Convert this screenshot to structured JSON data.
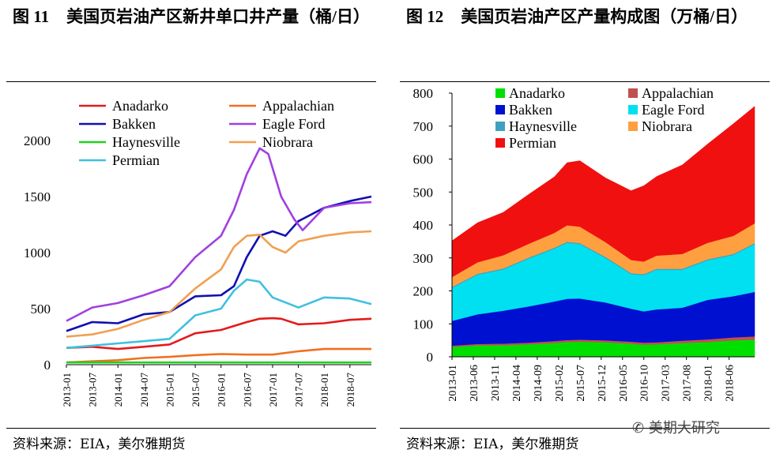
{
  "header": {
    "left": {
      "number": "图 11",
      "text": "美国页岩油产区新井单口井产量（桶/日）"
    },
    "right": {
      "number": "图 12",
      "text": "美国页岩油产区产量构成图（万桶/日）"
    }
  },
  "footer": {
    "left_source": "资料来源：EIA，美尔雅期货",
    "right_source": "资料来源：EIA，美尔雅期货",
    "watermark": "美期大研究"
  },
  "chart_data": [
    {
      "type": "line",
      "title": "美国页岩油产区新井单口井产量（桶/日）",
      "ylim": [
        0,
        2000
      ],
      "yticks": [
        0,
        500,
        1000,
        1500,
        2000
      ],
      "xlim": [
        "2013-01",
        "2018-12"
      ],
      "x_tick_labels": [
        "2013-01",
        "2013-07",
        "2014-01",
        "2014-07",
        "2015-01",
        "2015-07",
        "2016-01",
        "2016-07",
        "2017-01",
        "2017-07",
        "2018-01",
        "2018-07"
      ],
      "legend_position": "top-left",
      "series": [
        {
          "name": "Anadarko",
          "color": "#e41a1c",
          "points": [
            [
              "2013-01",
              150
            ],
            [
              "2013-07",
              160
            ],
            [
              "2014-01",
              140
            ],
            [
              "2014-07",
              160
            ],
            [
              "2015-01",
              180
            ],
            [
              "2015-07",
              280
            ],
            [
              "2016-01",
              310
            ],
            [
              "2016-07",
              380
            ],
            [
              "2016-10",
              410
            ],
            [
              "2017-01",
              415
            ],
            [
              "2017-03",
              410
            ],
            [
              "2017-07",
              360
            ],
            [
              "2018-01",
              370
            ],
            [
              "2018-07",
              400
            ],
            [
              "2018-12",
              410
            ]
          ]
        },
        {
          "name": "Appalachian",
          "color": "#f07020",
          "points": [
            [
              "2013-01",
              20
            ],
            [
              "2013-07",
              30
            ],
            [
              "2014-01",
              40
            ],
            [
              "2014-07",
              60
            ],
            [
              "2015-01",
              70
            ],
            [
              "2015-07",
              85
            ],
            [
              "2016-01",
              95
            ],
            [
              "2016-07",
              90
            ],
            [
              "2017-01",
              90
            ],
            [
              "2017-07",
              120
            ],
            [
              "2018-01",
              140
            ],
            [
              "2018-07",
              140
            ],
            [
              "2018-12",
              140
            ]
          ]
        },
        {
          "name": "Bakken",
          "color": "#1010b0",
          "points": [
            [
              "2013-01",
              300
            ],
            [
              "2013-07",
              380
            ],
            [
              "2014-01",
              370
            ],
            [
              "2014-07",
              450
            ],
            [
              "2015-01",
              470
            ],
            [
              "2015-07",
              610
            ],
            [
              "2016-01",
              620
            ],
            [
              "2016-04",
              700
            ],
            [
              "2016-07",
              960
            ],
            [
              "2016-10",
              1150
            ],
            [
              "2017-01",
              1190
            ],
            [
              "2017-04",
              1150
            ],
            [
              "2017-07",
              1280
            ],
            [
              "2018-01",
              1400
            ],
            [
              "2018-07",
              1460
            ],
            [
              "2018-12",
              1500
            ]
          ]
        },
        {
          "name": "Eagle Ford",
          "color": "#a040e0",
          "points": [
            [
              "2013-01",
              390
            ],
            [
              "2013-07",
              510
            ],
            [
              "2014-01",
              550
            ],
            [
              "2014-07",
              620
            ],
            [
              "2015-01",
              700
            ],
            [
              "2015-07",
              960
            ],
            [
              "2016-01",
              1150
            ],
            [
              "2016-04",
              1380
            ],
            [
              "2016-07",
              1700
            ],
            [
              "2016-10",
              1930
            ],
            [
              "2016-12",
              1880
            ],
            [
              "2017-03",
              1500
            ],
            [
              "2017-06",
              1300
            ],
            [
              "2017-08",
              1200
            ],
            [
              "2018-01",
              1400
            ],
            [
              "2018-07",
              1440
            ],
            [
              "2018-12",
              1450
            ]
          ]
        },
        {
          "name": "Haynesville",
          "color": "#20d020",
          "points": [
            [
              "2013-01",
              20
            ],
            [
              "2014-01",
              20
            ],
            [
              "2015-01",
              20
            ],
            [
              "2016-01",
              20
            ],
            [
              "2017-01",
              20
            ],
            [
              "2018-01",
              20
            ],
            [
              "2018-12",
              20
            ]
          ]
        },
        {
          "name": "Niobrara",
          "color": "#f0a050",
          "points": [
            [
              "2013-01",
              250
            ],
            [
              "2013-07",
              270
            ],
            [
              "2014-01",
              320
            ],
            [
              "2014-07",
              400
            ],
            [
              "2015-01",
              470
            ],
            [
              "2015-07",
              680
            ],
            [
              "2016-01",
              850
            ],
            [
              "2016-04",
              1050
            ],
            [
              "2016-07",
              1150
            ],
            [
              "2016-10",
              1160
            ],
            [
              "2017-01",
              1050
            ],
            [
              "2017-04",
              1000
            ],
            [
              "2017-07",
              1100
            ],
            [
              "2018-01",
              1150
            ],
            [
              "2018-07",
              1180
            ],
            [
              "2018-12",
              1190
            ]
          ]
        },
        {
          "name": "Permian",
          "color": "#40c0e0",
          "points": [
            [
              "2013-01",
              150
            ],
            [
              "2013-07",
              170
            ],
            [
              "2014-01",
              190
            ],
            [
              "2014-07",
              210
            ],
            [
              "2015-01",
              230
            ],
            [
              "2015-07",
              440
            ],
            [
              "2016-01",
              500
            ],
            [
              "2016-04",
              660
            ],
            [
              "2016-07",
              760
            ],
            [
              "2016-10",
              740
            ],
            [
              "2017-01",
              600
            ],
            [
              "2017-07",
              510
            ],
            [
              "2018-01",
              600
            ],
            [
              "2018-07",
              590
            ],
            [
              "2018-12",
              540
            ]
          ]
        }
      ]
    },
    {
      "type": "area",
      "stacked": true,
      "title": "美国页岩油产区产量构成图（万桶/日）",
      "ylim": [
        0,
        800
      ],
      "yticks": [
        0,
        100,
        200,
        300,
        400,
        500,
        600,
        700,
        800
      ],
      "xlim": [
        "2013-01",
        "2018-12"
      ],
      "x_tick_labels": [
        "2013-01",
        "2013-06",
        "2013-11",
        "2014-04",
        "2014-09",
        "2015-02",
        "2015-07",
        "2015-12",
        "2016-05",
        "2016-10",
        "2017-03",
        "2017-08",
        "2018-01",
        "2018-06"
      ],
      "x": [
        "2013-01",
        "2013-07",
        "2014-01",
        "2014-07",
        "2015-01",
        "2015-04",
        "2015-07",
        "2016-01",
        "2016-07",
        "2016-10",
        "2017-01",
        "2017-07",
        "2018-01",
        "2018-07",
        "2018-12"
      ],
      "legend_position": "top",
      "series": [
        {
          "name": "Anadarko",
          "color": "#00e000",
          "values": [
            30,
            35,
            35,
            38,
            42,
            45,
            46,
            44,
            40,
            37,
            38,
            42,
            45,
            50,
            52
          ]
        },
        {
          "name": "Appalachian",
          "color": "#c05050",
          "values": [
            4,
            4,
            5,
            5,
            6,
            6,
            6,
            6,
            6,
            6,
            6,
            7,
            8,
            9,
            10
          ]
        },
        {
          "name": "Bakken",
          "color": "#0010d0",
          "values": [
            75,
            90,
            100,
            110,
            120,
            125,
            125,
            115,
            100,
            95,
            100,
            100,
            120,
            125,
            135
          ]
        },
        {
          "name": "Eagle Ford",
          "color": "#00e0f0",
          "values": [
            100,
            120,
            125,
            145,
            160,
            170,
            165,
            135,
            105,
            110,
            120,
            115,
            120,
            125,
            145
          ]
        },
        {
          "name": "Haynesville",
          "color": "#40a0c0",
          "values": [
            3,
            3,
            3,
            3,
            3,
            3,
            3,
            3,
            3,
            3,
            3,
            3,
            3,
            3,
            3
          ]
        },
        {
          "name": "Niobrara",
          "color": "#ffa040",
          "values": [
            30,
            35,
            40,
            42,
            45,
            50,
            50,
            45,
            40,
            38,
            40,
            45,
            50,
            55,
            60
          ]
        },
        {
          "name": "Permian",
          "color": "#f01010",
          "values": [
            110,
            120,
            130,
            150,
            170,
            190,
            200,
            195,
            210,
            230,
            240,
            270,
            300,
            340,
            355
          ]
        }
      ]
    }
  ]
}
